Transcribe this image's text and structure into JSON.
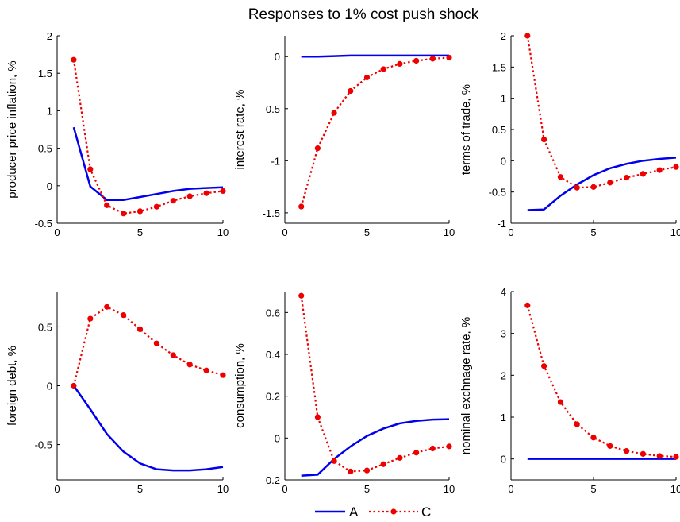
{
  "title": "Responses to 1% cost push shock",
  "legend": {
    "placement": "bottom-center",
    "entries": [
      {
        "label": "A",
        "color": "#0000ee",
        "style": "solid"
      },
      {
        "label": "C",
        "color": "#ee0000",
        "style": "dotted-markers"
      }
    ]
  },
  "chart_data": [
    {
      "type": "line",
      "ylabel": "producer price inflation, %",
      "xlim": [
        0,
        10
      ],
      "ylim": [
        -0.5,
        2
      ],
      "xticks": [
        0,
        5,
        10
      ],
      "yticks": [
        -0.5,
        0,
        0.5,
        1,
        1.5,
        2
      ],
      "x": [
        1,
        2,
        3,
        4,
        5,
        6,
        7,
        8,
        9,
        10
      ],
      "series": [
        {
          "name": "A",
          "values": [
            0.78,
            -0.01,
            -0.19,
            -0.19,
            -0.15,
            -0.11,
            -0.07,
            -0.04,
            -0.03,
            -0.02
          ]
        },
        {
          "name": "C",
          "values": [
            1.68,
            0.22,
            -0.26,
            -0.37,
            -0.34,
            -0.28,
            -0.2,
            -0.14,
            -0.1,
            -0.07
          ]
        }
      ]
    },
    {
      "type": "line",
      "ylabel": "interest rate, %",
      "xlim": [
        0,
        10
      ],
      "ylim": [
        -1.6,
        0.2
      ],
      "xticks": [
        0,
        5,
        10
      ],
      "yticks": [
        -1.5,
        -1,
        -0.5,
        0
      ],
      "x": [
        1,
        2,
        3,
        4,
        5,
        6,
        7,
        8,
        9,
        10
      ],
      "series": [
        {
          "name": "A",
          "values": [
            0,
            0,
            0.005,
            0.01,
            0.01,
            0.01,
            0.01,
            0.01,
            0.01,
            0.01
          ]
        },
        {
          "name": "C",
          "values": [
            -1.44,
            -0.88,
            -0.54,
            -0.33,
            -0.2,
            -0.12,
            -0.07,
            -0.04,
            -0.02,
            -0.01
          ]
        }
      ]
    },
    {
      "type": "line",
      "ylabel": "terms of trade, %",
      "xlim": [
        0,
        10
      ],
      "ylim": [
        -1,
        2
      ],
      "xticks": [
        0,
        5,
        10
      ],
      "yticks": [
        -1,
        -0.5,
        0,
        0.5,
        1,
        1.5,
        2
      ],
      "x": [
        1,
        2,
        3,
        4,
        5,
        6,
        7,
        8,
        9,
        10
      ],
      "series": [
        {
          "name": "A",
          "values": [
            -0.79,
            -0.78,
            -0.56,
            -0.38,
            -0.23,
            -0.12,
            -0.05,
            0,
            0.03,
            0.05
          ]
        },
        {
          "name": "C",
          "values": [
            2,
            0.34,
            -0.26,
            -0.43,
            -0.42,
            -0.35,
            -0.27,
            -0.21,
            -0.15,
            -0.1
          ]
        }
      ]
    },
    {
      "type": "line",
      "ylabel": "foreign debt, %",
      "xlim": [
        0,
        10
      ],
      "ylim": [
        -0.8,
        0.8
      ],
      "xticks": [
        0,
        5,
        10
      ],
      "yticks": [
        -0.5,
        0,
        0.5
      ],
      "x": [
        1,
        2,
        3,
        4,
        5,
        6,
        7,
        8,
        9,
        10
      ],
      "series": [
        {
          "name": "A",
          "values": [
            0,
            -0.2,
            -0.41,
            -0.56,
            -0.66,
            -0.71,
            -0.72,
            -0.72,
            -0.71,
            -0.69
          ]
        },
        {
          "name": "C",
          "values": [
            0,
            0.57,
            0.67,
            0.6,
            0.48,
            0.36,
            0.26,
            0.18,
            0.13,
            0.09
          ]
        }
      ]
    },
    {
      "type": "line",
      "ylabel": "consumption, %",
      "xlim": [
        0,
        10
      ],
      "ylim": [
        -0.2,
        0.7
      ],
      "xticks": [
        0,
        5,
        10
      ],
      "yticks": [
        -0.2,
        0,
        0.2,
        0.4,
        0.6
      ],
      "x": [
        1,
        2,
        3,
        4,
        5,
        6,
        7,
        8,
        9,
        10
      ],
      "series": [
        {
          "name": "A",
          "values": [
            -0.18,
            -0.175,
            -0.1,
            -0.04,
            0.01,
            0.045,
            0.07,
            0.082,
            0.088,
            0.09
          ]
        },
        {
          "name": "C",
          "values": [
            0.68,
            0.1,
            -0.11,
            -0.16,
            -0.155,
            -0.125,
            -0.095,
            -0.07,
            -0.05,
            -0.04
          ]
        }
      ]
    },
    {
      "type": "line",
      "ylabel": "nominal exchnage rate, %",
      "xlim": [
        0,
        10
      ],
      "ylim": [
        -0.5,
        4
      ],
      "xticks": [
        0,
        5,
        10
      ],
      "yticks": [
        0,
        1,
        2,
        3,
        4
      ],
      "x": [
        1,
        2,
        3,
        4,
        5,
        6,
        7,
        8,
        9,
        10
      ],
      "series": [
        {
          "name": "A",
          "values": [
            0,
            0,
            0,
            0,
            0,
            0,
            0,
            0,
            0,
            0
          ]
        },
        {
          "name": "C",
          "values": [
            3.67,
            2.22,
            1.36,
            0.83,
            0.51,
            0.31,
            0.19,
            0.12,
            0.07,
            0.05
          ]
        }
      ]
    }
  ]
}
